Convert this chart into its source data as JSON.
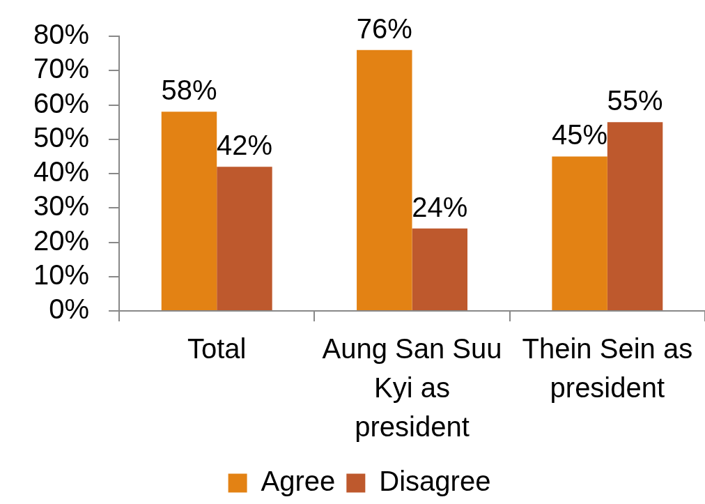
{
  "chart_data": {
    "type": "bar",
    "categories": [
      "Total",
      "Aung San Suu Kyi as president",
      "Thein Sein as president"
    ],
    "series": [
      {
        "name": "Agree",
        "color": "#e38214",
        "values": [
          58,
          76,
          45
        ],
        "value_labels": [
          "58%",
          "76%",
          "45%"
        ]
      },
      {
        "name": "Disagree",
        "color": "#be592d",
        "values": [
          42,
          24,
          55
        ],
        "value_labels": [
          "42%",
          "24%",
          "55%"
        ]
      }
    ],
    "ylim": [
      0,
      80
    ],
    "yticks": [
      {
        "value": 0,
        "label": "0%"
      },
      {
        "value": 10,
        "label": "10%"
      },
      {
        "value": 20,
        "label": "20%"
      },
      {
        "value": 30,
        "label": "30%"
      },
      {
        "value": 40,
        "label": "40%"
      },
      {
        "value": 50,
        "label": "50%"
      },
      {
        "value": 60,
        "label": "60%"
      },
      {
        "value": 70,
        "label": "70%"
      },
      {
        "value": 80,
        "label": "80%"
      }
    ],
    "grid": false,
    "legend": "bottom"
  }
}
